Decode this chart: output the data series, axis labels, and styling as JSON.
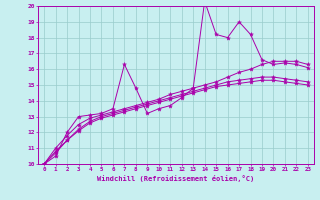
{
  "xlabel": "Windchill (Refroidissement éolien,°C)",
  "xlim": [
    -0.5,
    23.5
  ],
  "ylim": [
    10,
    20
  ],
  "xticks": [
    0,
    1,
    2,
    3,
    4,
    5,
    6,
    7,
    8,
    9,
    10,
    11,
    12,
    13,
    14,
    15,
    16,
    17,
    18,
    19,
    20,
    21,
    22,
    23
  ],
  "yticks": [
    10,
    11,
    12,
    13,
    14,
    15,
    16,
    17,
    18,
    19,
    20
  ],
  "bg_color": "#c8eff0",
  "line_color": "#aa00aa",
  "grid_color": "#99cccc",
  "series": [
    [
      10.0,
      10.5,
      12.0,
      13.0,
      13.1,
      13.2,
      13.5,
      16.3,
      14.8,
      13.2,
      13.5,
      13.7,
      14.2,
      14.8,
      20.3,
      18.2,
      18.0,
      19.0,
      18.2,
      16.6,
      16.3,
      16.4,
      16.3,
      16.1
    ],
    [
      10.0,
      11.0,
      11.8,
      12.5,
      12.9,
      13.1,
      13.3,
      13.5,
      13.7,
      13.9,
      14.1,
      14.4,
      14.6,
      14.8,
      15.0,
      15.2,
      15.5,
      15.8,
      16.0,
      16.3,
      16.5,
      16.5,
      16.5,
      16.3
    ],
    [
      10.0,
      10.8,
      11.5,
      12.2,
      12.7,
      13.0,
      13.2,
      13.4,
      13.6,
      13.8,
      14.0,
      14.2,
      14.4,
      14.6,
      14.8,
      15.0,
      15.2,
      15.3,
      15.4,
      15.5,
      15.5,
      15.4,
      15.3,
      15.2
    ],
    [
      10.0,
      10.7,
      11.5,
      12.1,
      12.6,
      12.9,
      13.1,
      13.3,
      13.5,
      13.7,
      13.9,
      14.1,
      14.3,
      14.5,
      14.7,
      14.9,
      15.0,
      15.1,
      15.2,
      15.3,
      15.3,
      15.2,
      15.1,
      15.0
    ]
  ]
}
